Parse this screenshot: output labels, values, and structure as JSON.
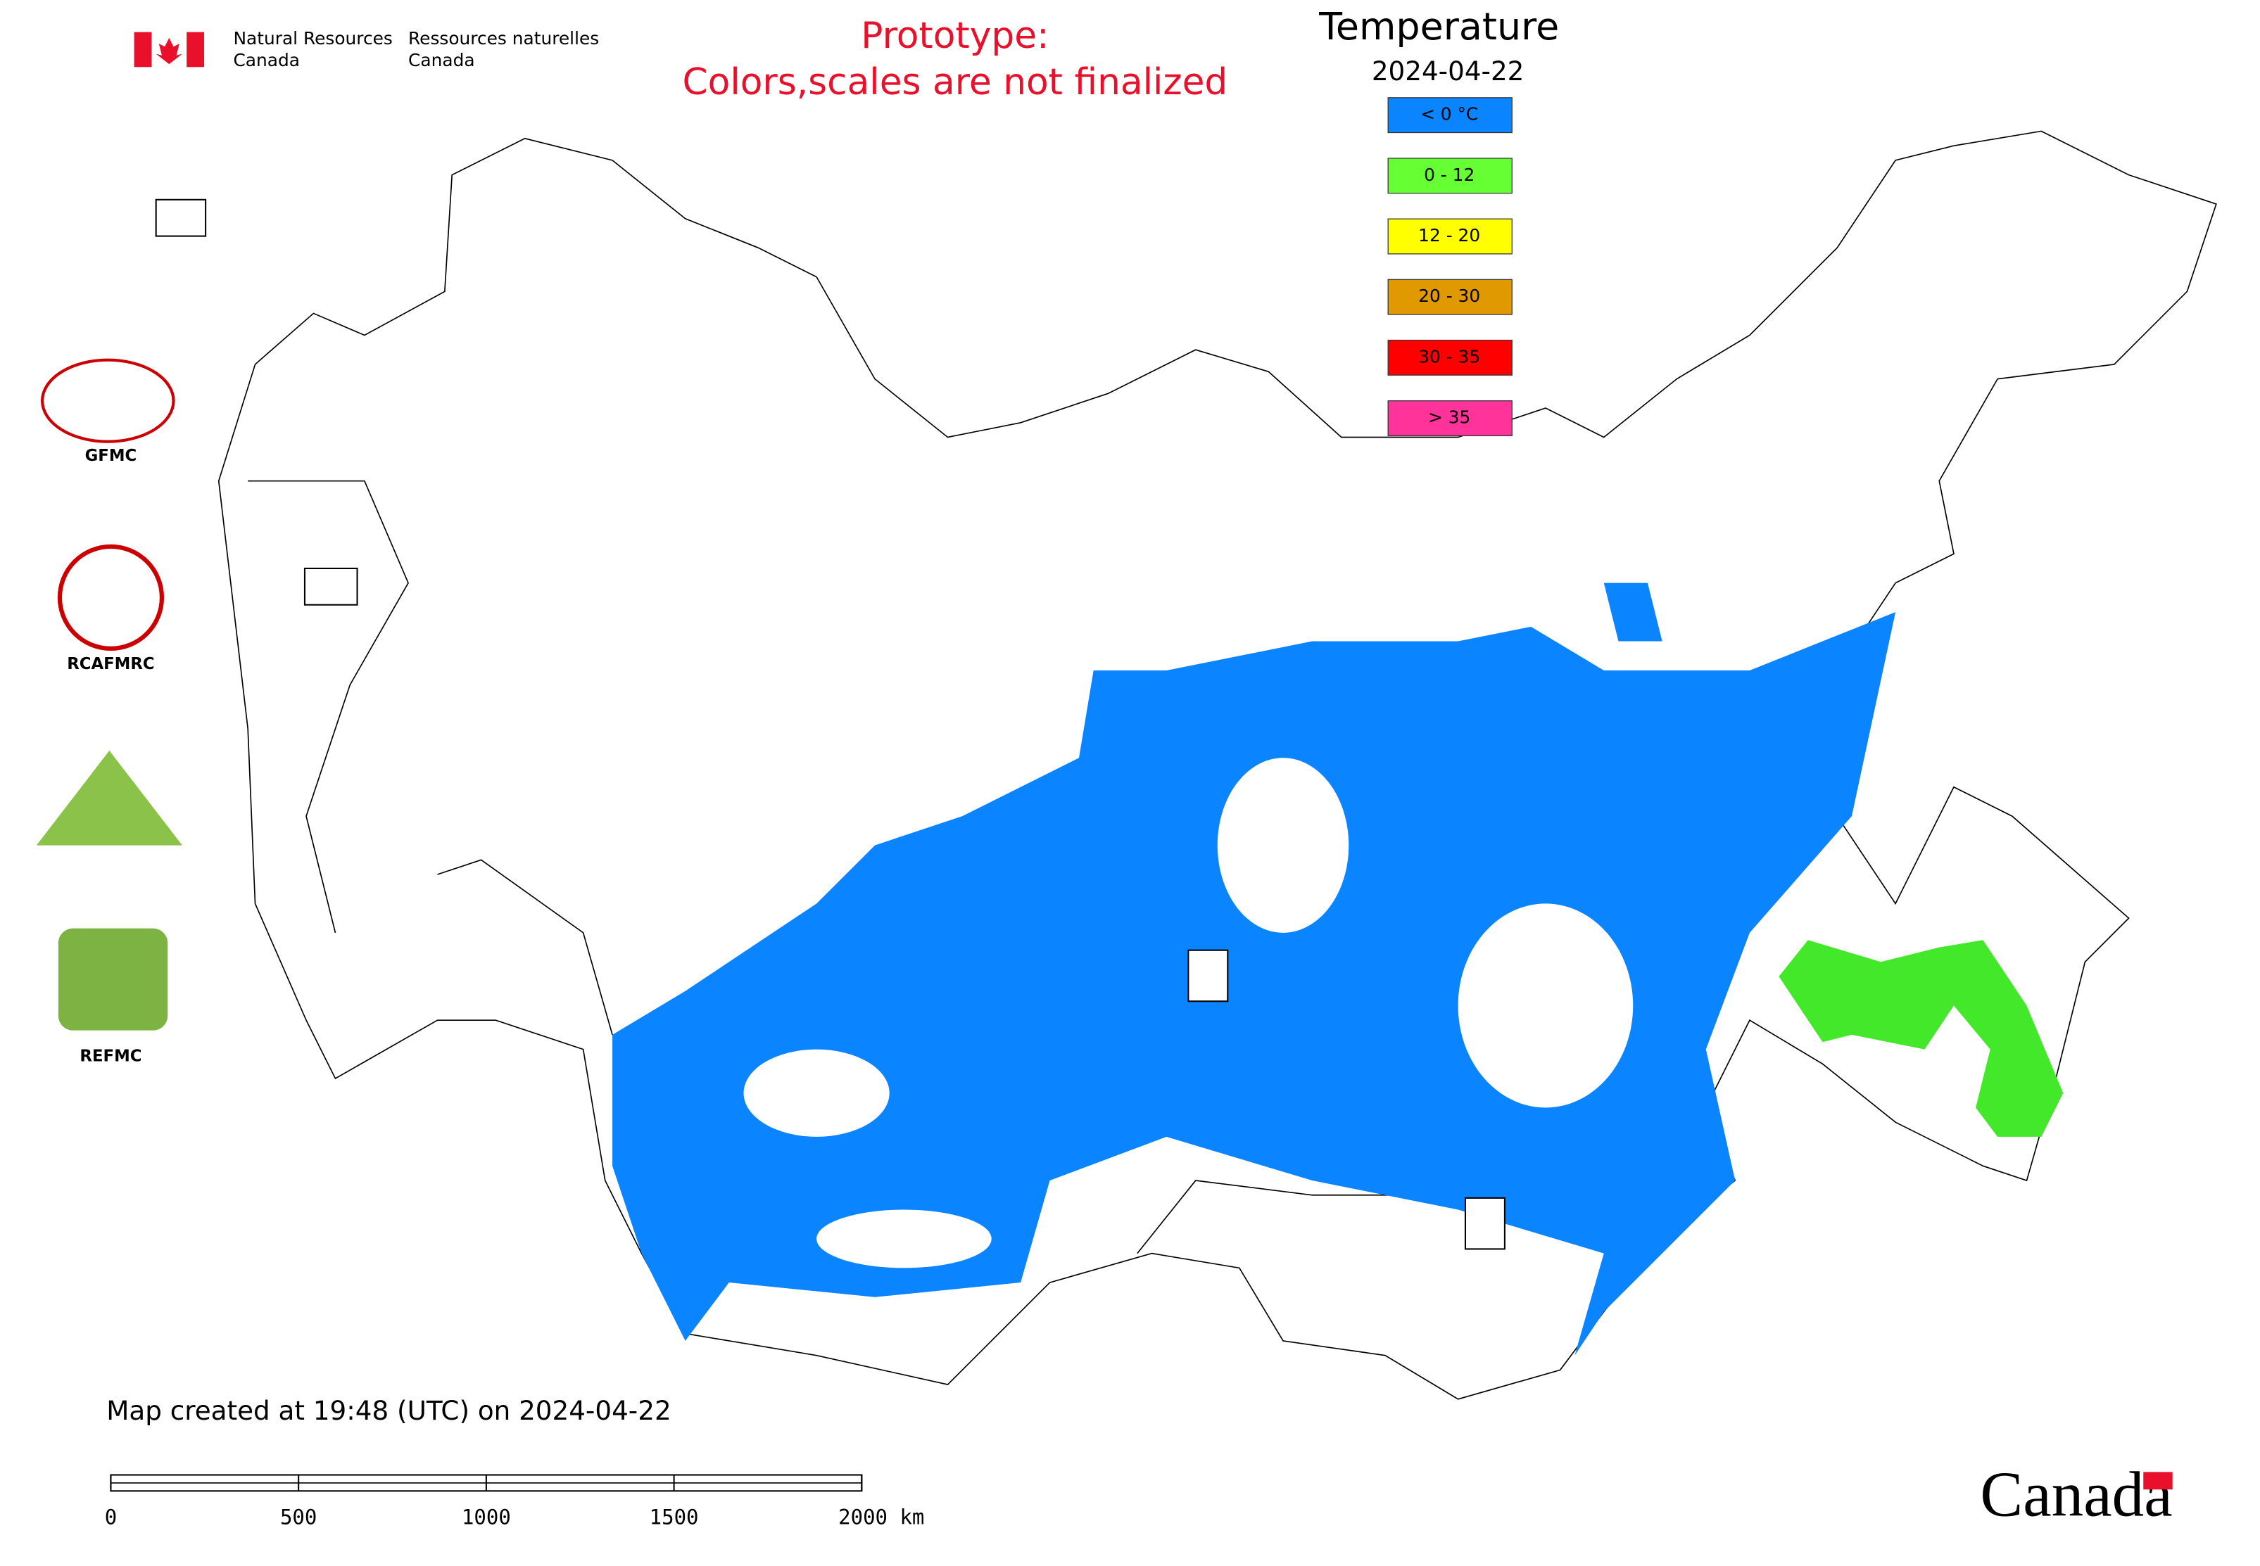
{
  "header": {
    "agency_en": [
      "Natural Resources",
      "Canada"
    ],
    "agency_fr": [
      "Ressources naturelles",
      "Canada"
    ],
    "prototype_note": [
      "Prototype:",
      "Colors,scales are not finalized"
    ]
  },
  "legend": {
    "title": "Temperature",
    "date": "2024-04-22",
    "items": [
      {
        "label": "< 0 °C",
        "color": "#0a84ff"
      },
      {
        "label": "0 - 12",
        "color": "#66ff33"
      },
      {
        "label": "12 - 20",
        "color": "#ffff00"
      },
      {
        "label": "20 - 30",
        "color": "#e09a00"
      },
      {
        "label": "30 - 35",
        "color": "#ff0000"
      },
      {
        "label": "> 35",
        "color": "#ff3399"
      }
    ]
  },
  "logos": [
    "GFMC",
    "RCAFMRC",
    "REFMC"
  ],
  "footer": {
    "created": "Map created at 19:48 (UTC) on 2024-04-22",
    "wordmark": "Canada"
  },
  "scale_bar": {
    "ticks": [
      0,
      500,
      1000,
      1500,
      {
        "value": 2000,
        "label": "2000 km"
      }
    ]
  }
}
